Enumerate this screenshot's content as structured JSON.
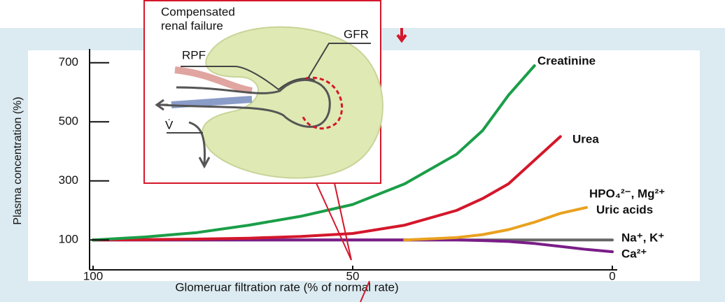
{
  "chart_data": {
    "type": "line",
    "y_label": "Plasma concentration (%)",
    "x_label": "Glomeruar filtration rate (% of normal rate)",
    "x": [
      100,
      90,
      80,
      70,
      60,
      50,
      40,
      30,
      25,
      20,
      15,
      10,
      5,
      0
    ],
    "xlim": [
      100,
      0
    ],
    "xticks": [
      100,
      50,
      0
    ],
    "ylim": [
      0,
      750
    ],
    "yticks": [
      100,
      300,
      500,
      700
    ],
    "series": [
      {
        "name": "Creatinine",
        "color": "#1a9e48",
        "values": [
          100,
          110,
          125,
          150,
          180,
          220,
          290,
          390,
          470,
          590,
          690,
          null,
          null,
          null
        ]
      },
      {
        "name": "Urea",
        "color": "#d4172b",
        "values": [
          100,
          101,
          103,
          106,
          112,
          122,
          150,
          200,
          240,
          290,
          370,
          450,
          null,
          null
        ]
      },
      {
        "name": "HPO₄²⁻, Mg²⁺",
        "color": "#e9a11f",
        "values": [
          null,
          null,
          null,
          null,
          null,
          null,
          100,
          108,
          118,
          135,
          160,
          190,
          210,
          null
        ]
      },
      {
        "name": "Na⁺, K⁺",
        "color": "#666666",
        "values": [
          100,
          100,
          100,
          100,
          100,
          100,
          100,
          100,
          100,
          100,
          100,
          100,
          100,
          100
        ]
      },
      {
        "name": "Ca²⁺",
        "color": "#7a1d88",
        "values": [
          100,
          100,
          100,
          100,
          100,
          100,
          100,
          100,
          98,
          95,
          88,
          78,
          68,
          60
        ]
      }
    ],
    "annotations": [
      "Uric acids"
    ],
    "inset": {
      "title_lines": [
        "Compensated",
        "renal failure"
      ],
      "labels": [
        "GFR",
        "RPF",
        "V̇"
      ]
    }
  }
}
